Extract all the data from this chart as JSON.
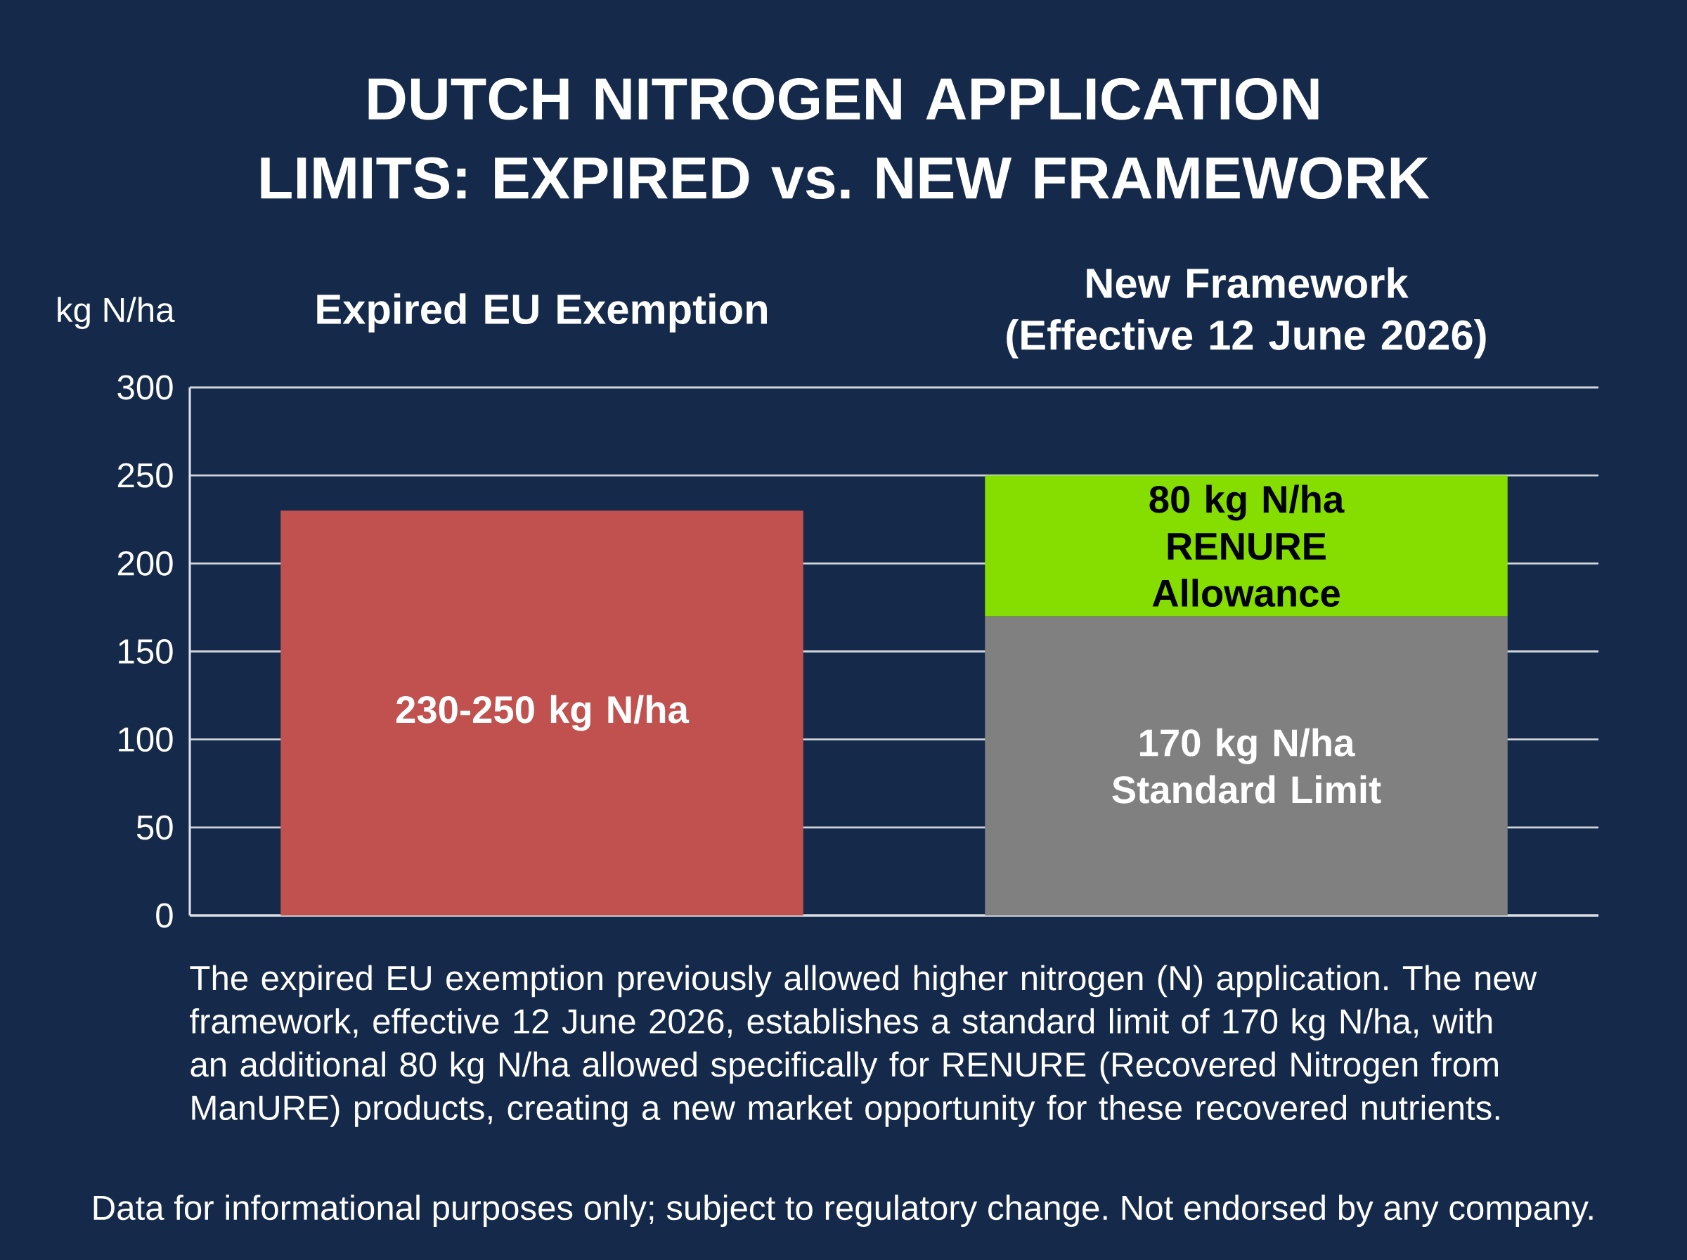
{
  "chart_data": {
    "type": "bar",
    "title": "DUTCH NITROGEN APPLICATION LIMITS: EXPIRED vs. NEW FRAMEWORK",
    "ylabel": "kg N/ha",
    "categories": [
      "Expired EU Exemption",
      "New Framework (Effective 12 June 2026)"
    ],
    "stacked": true,
    "series": [
      {
        "color": "#c0514f",
        "values": [
          230,
          null
        ],
        "value_labels": [
          "230-250 kg N/ha",
          null
        ]
      },
      {
        "color": "#808080",
        "values": [
          null,
          170
        ],
        "value_labels": [
          null,
          "170 kg N/ha Standard Limit"
        ]
      },
      {
        "color": "#86dd00",
        "values": [
          null,
          80
        ],
        "value_labels": [
          null,
          "80 kg N/ha RENURE Allowance"
        ]
      }
    ],
    "ylim": [
      0,
      300
    ],
    "yticks": [
      0,
      50,
      100,
      150,
      200,
      250,
      300
    ],
    "grid": "y",
    "annotations": [
      "The expired EU exemption previously allowed higher nitrogen (N) application. The new framework, effective 12 June 2026, establishes a standard limit of 170 kg N/ha, with an additional 80 kg N/ha allowed specifically for RENURE (Recovered Nitrogen from ManURE) products, creating a new market opportunity for these recovered nutrients.",
      "Data for informational purposes only; subject to regulatory change. Not endorsed by any company."
    ]
  }
}
